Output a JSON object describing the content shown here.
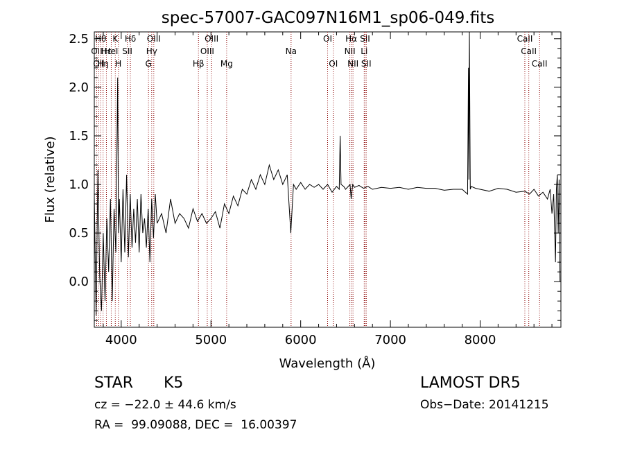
{
  "chart_data": {
    "type": "line",
    "title": "spec-57007-GAC097N16M1_sp06-049.fits",
    "xlabel": "Wavelength (Å)",
    "ylabel": "Flux (relative)",
    "xlim": [
      3700,
      8900
    ],
    "ylim": [
      -0.47,
      2.57
    ],
    "xticks": [
      4000,
      5000,
      6000,
      7000,
      8000
    ],
    "yticks": [
      0.0,
      0.5,
      1.0,
      1.5,
      2.0,
      2.5
    ],
    "ytick_labels": [
      "0.0",
      "0.5",
      "1.0",
      "1.5",
      "2.0",
      "2.5"
    ],
    "grid": false,
    "line_color": "#000000",
    "marker_color": "#8b0000",
    "series": [
      {
        "x": [
          3700,
          3720,
          3740,
          3760,
          3780,
          3800,
          3820,
          3840,
          3860,
          3880,
          3900,
          3920,
          3940,
          3960,
          3970,
          3980,
          4000,
          4020,
          4040,
          4060,
          4080,
          4100,
          4120,
          4140,
          4160,
          4180,
          4200,
          4220,
          4240,
          4260,
          4280,
          4300,
          4320,
          4340,
          4360,
          4380,
          4400,
          4450,
          4500,
          4550,
          4600,
          4650,
          4700,
          4750,
          4800,
          4850,
          4900,
          4950,
          5000,
          5050,
          5100,
          5150,
          5200,
          5250,
          5300,
          5350,
          5400,
          5450,
          5500,
          5550,
          5600,
          5650,
          5700,
          5750,
          5800,
          5850,
          5890,
          5920,
          5950,
          6000,
          6050,
          6100,
          6150,
          6200,
          6250,
          6300,
          6350,
          6400,
          6430,
          6440,
          6450,
          6480,
          6500,
          6550,
          6563,
          6580,
          6600,
          6650,
          6700,
          6750,
          6800,
          6900,
          7000,
          7100,
          7200,
          7300,
          7400,
          7500,
          7600,
          7700,
          7800,
          7860,
          7870,
          7875,
          7880,
          7890,
          7900,
          7950,
          8000,
          8100,
          8200,
          8300,
          8400,
          8500,
          8550,
          8600,
          8650,
          8700,
          8750,
          8780,
          8800,
          8820,
          8840,
          8850,
          8860,
          8870,
          8880,
          8890
        ],
        "y": [
          0.9,
          -0.35,
          1.15,
          0.05,
          -0.3,
          0.5,
          -0.2,
          0.65,
          0.1,
          0.85,
          -0.2,
          0.75,
          0.3,
          2.1,
          0.5,
          0.85,
          0.2,
          0.95,
          0.3,
          1.1,
          0.25,
          0.9,
          0.35,
          0.75,
          0.4,
          0.85,
          0.3,
          0.9,
          0.5,
          0.65,
          0.35,
          0.75,
          0.2,
          0.85,
          0.45,
          0.9,
          0.6,
          0.7,
          0.5,
          0.85,
          0.6,
          0.7,
          0.65,
          0.55,
          0.75,
          0.62,
          0.7,
          0.6,
          0.65,
          0.72,
          0.55,
          0.8,
          0.7,
          0.88,
          0.78,
          0.95,
          0.9,
          1.05,
          0.95,
          1.1,
          1.0,
          1.2,
          1.05,
          1.15,
          1.0,
          1.1,
          0.5,
          1.0,
          0.95,
          1.02,
          0.95,
          1.0,
          0.97,
          1.0,
          0.95,
          1.0,
          0.92,
          0.98,
          0.95,
          1.5,
          1.0,
          0.98,
          0.95,
          1.0,
          0.85,
          1.0,
          0.97,
          0.99,
          0.96,
          0.98,
          0.95,
          0.97,
          0.96,
          0.97,
          0.95,
          0.97,
          0.96,
          0.96,
          0.94,
          0.95,
          0.95,
          0.9,
          2.2,
          1.05,
          2.57,
          0.95,
          0.98,
          0.96,
          0.95,
          0.93,
          0.96,
          0.95,
          0.92,
          0.93,
          0.9,
          0.95,
          0.88,
          0.92,
          0.85,
          0.95,
          0.7,
          0.9,
          0.2,
          0.95,
          1.1,
          0.5,
          1.05,
          -0.0
        ]
      }
    ],
    "lines": [
      {
        "wl": 3727,
        "label": "OII",
        "row": 1
      },
      {
        "wl": 3750,
        "label": "OII",
        "row": 2
      },
      {
        "wl": 3771,
        "label": "Hθ",
        "row": 0
      },
      {
        "wl": 3798,
        "label": "Hη",
        "row": 2
      },
      {
        "wl": 3835,
        "label": "Hε",
        "row": 1
      },
      {
        "wl": 3889,
        "label": "HeI",
        "row": 1
      },
      {
        "wl": 3934,
        "label": "K",
        "row": 0
      },
      {
        "wl": 3969,
        "label": "H",
        "row": 2
      },
      {
        "wl": 4068,
        "label": "SII",
        "row": 1
      },
      {
        "wl": 4102,
        "label": "Hδ",
        "row": 0
      },
      {
        "wl": 4304,
        "label": "G",
        "row": 2
      },
      {
        "wl": 4340,
        "label": "Hγ",
        "row": 1
      },
      {
        "wl": 4363,
        "label": "OIII",
        "row": 0
      },
      {
        "wl": 4861,
        "label": "Hβ",
        "row": 2
      },
      {
        "wl": 4959,
        "label": "OIII",
        "row": 1
      },
      {
        "wl": 5007,
        "label": "OIII",
        "row": 0
      },
      {
        "wl": 5175,
        "label": "Mg",
        "row": 2
      },
      {
        "wl": 5893,
        "label": "Na",
        "row": 1
      },
      {
        "wl": 6300,
        "label": "OI",
        "row": 0
      },
      {
        "wl": 6364,
        "label": "OI",
        "row": 2
      },
      {
        "wl": 6548,
        "label": "NII",
        "row": 1
      },
      {
        "wl": 6563,
        "label": "Hα",
        "row": 0
      },
      {
        "wl": 6583,
        "label": "NII",
        "row": 2
      },
      {
        "wl": 6708,
        "label": "Li",
        "row": 1
      },
      {
        "wl": 6717,
        "label": "SII",
        "row": 0
      },
      {
        "wl": 6731,
        "label": "SII",
        "row": 2
      },
      {
        "wl": 8498,
        "label": "CaII",
        "row": 0
      },
      {
        "wl": 8542,
        "label": "CaII",
        "row": 1
      },
      {
        "wl": 8662,
        "label": "CaII",
        "row": 2
      }
    ]
  },
  "info": {
    "class": "STAR",
    "subclass": "K5",
    "survey": "LAMOST DR5",
    "cz": "cz = −22.0 ± 44.6 km/s",
    "obs_date": "Obs−Date: 20141215",
    "coords": "RA =  99.09088, DEC =  16.00397"
  }
}
